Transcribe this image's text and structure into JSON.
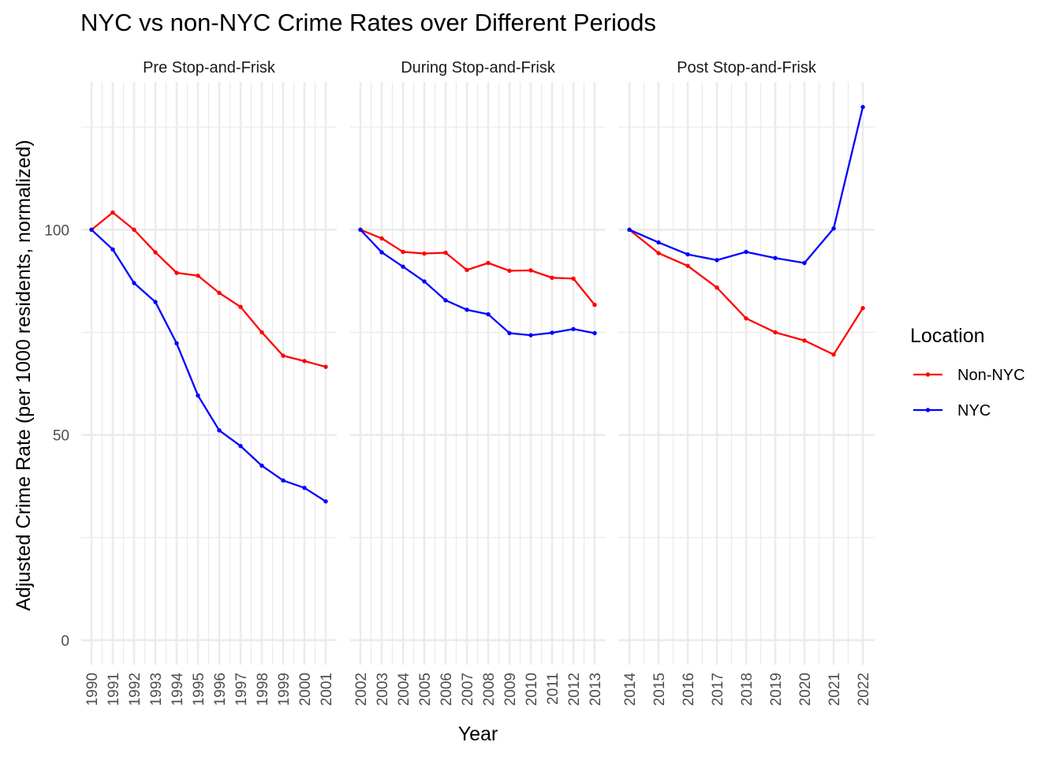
{
  "chart_data": {
    "type": "line",
    "title": "NYC vs non-NYC Crime Rates over Different Periods",
    "xlabel": "Year",
    "ylabel": "Adjusted Crime Rate (per 1000 residents, normalized)",
    "ylim": [
      -6,
      136
    ],
    "yticks": [
      0,
      50,
      100
    ],
    "grid": true,
    "legend": {
      "title": "Location",
      "position": "right",
      "entries": [
        {
          "name": "Non-NYC",
          "color": "#ff0000"
        },
        {
          "name": "NYC",
          "color": "#0000ff"
        }
      ]
    },
    "panels": [
      {
        "label": "Pre Stop-and-Frisk",
        "x": [
          "1990",
          "1991",
          "1992",
          "1993",
          "1994",
          "1995",
          "1996",
          "1997",
          "1998",
          "1999",
          "2000",
          "2001"
        ],
        "series": [
          {
            "name": "Non-NYC",
            "color": "#ff0000",
            "values": [
              100,
              104.2,
              100,
              94.5,
              89.5,
              88.8,
              84.6,
              81.2,
              75,
              69.3,
              68,
              66.6
            ]
          },
          {
            "name": "NYC",
            "color": "#0000ff",
            "values": [
              100,
              95.2,
              87,
              82.4,
              72.3,
              59.6,
              51.1,
              47.3,
              42.5,
              38.9,
              37.1,
              33.8
            ]
          }
        ]
      },
      {
        "label": "During Stop-and-Frisk",
        "x": [
          "2002",
          "2003",
          "2004",
          "2005",
          "2006",
          "2007",
          "2008",
          "2009",
          "2010",
          "2011",
          "2012",
          "2013"
        ],
        "series": [
          {
            "name": "Non-NYC",
            "color": "#ff0000",
            "values": [
              100,
              97.9,
              94.6,
              94.2,
              94.4,
              90.2,
              91.9,
              90,
              90.1,
              88.3,
              88.1,
              81.7
            ]
          },
          {
            "name": "NYC",
            "color": "#0000ff",
            "values": [
              100,
              94.5,
              91,
              87.4,
              82.8,
              80.5,
              79.4,
              74.8,
              74.3,
              74.9,
              75.8,
              74.8
            ]
          }
        ]
      },
      {
        "label": "Post Stop-and-Frisk",
        "x": [
          "2014",
          "2015",
          "2016",
          "2017",
          "2018",
          "2019",
          "2020",
          "2021",
          "2022"
        ],
        "series": [
          {
            "name": "Non-NYC",
            "color": "#ff0000",
            "values": [
              100,
              94.3,
              91.2,
              85.9,
              78.4,
              75,
              73,
              69.6,
              80.9
            ]
          },
          {
            "name": "NYC",
            "color": "#0000ff",
            "values": [
              100,
              96.9,
              94,
              92.6,
              94.6,
              93.1,
              91.9,
              100.3,
              129.9
            ]
          }
        ]
      }
    ]
  }
}
